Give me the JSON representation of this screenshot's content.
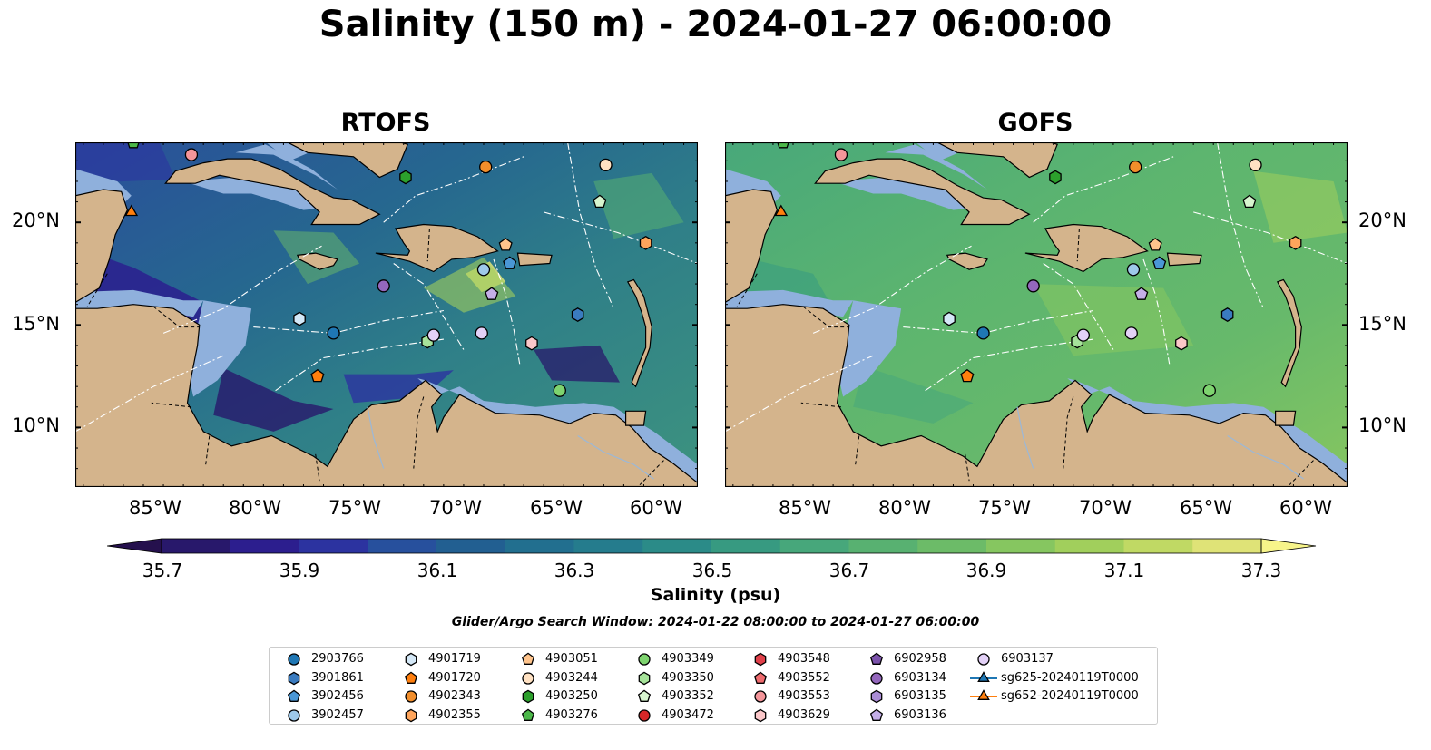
{
  "title": "Salinity (150 m) - 2024-01-27 06:00:00",
  "panels": [
    {
      "title": "RTOFS",
      "variant": "rtofs"
    },
    {
      "title": "GOFS",
      "variant": "gofs"
    }
  ],
  "axes": {
    "lon_ticks": [
      "85°W",
      "80°W",
      "75°W",
      "70°W",
      "65°W",
      "60°W"
    ],
    "lat_ticks": [
      "20°N",
      "15°N",
      "10°N"
    ]
  },
  "colorbar": {
    "label": "Salinity (psu)",
    "ticks": [
      "35.7",
      "35.9",
      "36.1",
      "36.3",
      "36.5",
      "36.7",
      "36.9",
      "37.1",
      "37.3"
    ],
    "colors": [
      "#28186b",
      "#2c1e8e",
      "#2c33a0",
      "#27509d",
      "#225f91",
      "#226f8f",
      "#257c8d",
      "#2b8b88",
      "#379a81",
      "#47a77b",
      "#58b171",
      "#6cbb68",
      "#86c660",
      "#a1cf5c",
      "#c0d964",
      "#dfe377"
    ]
  },
  "search_window": "Glider/Argo Search Window: 2024-01-22 08:00:00 to 2024-01-27 06:00:00",
  "legend": [
    {
      "label": "2903766",
      "marker": "circle",
      "color": "#1f77b4"
    },
    {
      "label": "3901861",
      "marker": "hexagon",
      "color": "#3a7bbf"
    },
    {
      "label": "3902456",
      "marker": "pentagon",
      "color": "#4a97d6"
    },
    {
      "label": "3902457",
      "marker": "circle",
      "color": "#9ec9ea"
    },
    {
      "label": "4901719",
      "marker": "hexagon",
      "color": "#d4e8f7"
    },
    {
      "label": "4901720",
      "marker": "pentagon",
      "color": "#ff7f0e"
    },
    {
      "label": "4902343",
      "marker": "circle",
      "color": "#f28e2b"
    },
    {
      "label": "4902355",
      "marker": "hexagon",
      "color": "#ffa55c"
    },
    {
      "label": "4903051",
      "marker": "pentagon",
      "color": "#ffc48c"
    },
    {
      "label": "4903244",
      "marker": "circle",
      "color": "#ffe1c2"
    },
    {
      "label": "4903250",
      "marker": "hexagon",
      "color": "#2ca02c"
    },
    {
      "label": "4903276",
      "marker": "pentagon",
      "color": "#4cb84a"
    },
    {
      "label": "4903349",
      "marker": "circle",
      "color": "#7ed46f"
    },
    {
      "label": "4903350",
      "marker": "hexagon",
      "color": "#a6e39a"
    },
    {
      "label": "4903352",
      "marker": "pentagon",
      "color": "#d7f5cf"
    },
    {
      "label": "4903472",
      "marker": "circle",
      "color": "#d62728"
    },
    {
      "label": "4903548",
      "marker": "hexagon",
      "color": "#e0404a"
    },
    {
      "label": "4903552",
      "marker": "pentagon",
      "color": "#ee6b6e"
    },
    {
      "label": "4903553",
      "marker": "circle",
      "color": "#f4959a"
    },
    {
      "label": "4903629",
      "marker": "hexagon",
      "color": "#fbc7c9"
    },
    {
      "label": "6902958",
      "marker": "pentagon",
      "color": "#7b52ab"
    },
    {
      "label": "6903134",
      "marker": "circle",
      "color": "#9467bd"
    },
    {
      "label": "6903135",
      "marker": "hexagon",
      "color": "#ab8dd6"
    },
    {
      "label": "6903136",
      "marker": "pentagon",
      "color": "#c5afe8"
    },
    {
      "label": "6903137",
      "marker": "circle",
      "color": "#e3d1f7"
    },
    {
      "label": "sg625-20240119T0000",
      "marker": "triangle",
      "color": "#1f77b4"
    },
    {
      "label": "sg652-20240119T0000",
      "marker": "triangle",
      "color": "#ff7f0e"
    }
  ],
  "platforms": [
    {
      "label": "2903766",
      "lon": -76.5,
      "lat": 14.6
    },
    {
      "label": "3901861",
      "lon": -64.3,
      "lat": 15.5
    },
    {
      "label": "3902456",
      "lon": -67.7,
      "lat": 18.0
    },
    {
      "label": "3902457",
      "lon": -69.0,
      "lat": 17.7
    },
    {
      "label": "4901719",
      "lon": -78.2,
      "lat": 15.3
    },
    {
      "label": "4901720",
      "lon": -77.3,
      "lat": 12.5
    },
    {
      "label": "4902343",
      "lon": -68.9,
      "lat": 22.7
    },
    {
      "label": "4902355",
      "lon": -60.9,
      "lat": 19.0
    },
    {
      "label": "4903051",
      "lon": -67.9,
      "lat": 18.9
    },
    {
      "label": "4903244",
      "lon": -62.9,
      "lat": 22.8
    },
    {
      "label": "4903250",
      "lon": -72.9,
      "lat": 22.2
    },
    {
      "label": "4903276",
      "lon": -86.5,
      "lat": 23.9
    },
    {
      "label": "4903349",
      "lon": -65.2,
      "lat": 11.8
    },
    {
      "label": "4903350",
      "lon": -71.8,
      "lat": 14.2
    },
    {
      "label": "4903352",
      "lon": -63.2,
      "lat": 21.0
    },
    {
      "label": "4903553",
      "lon": -83.6,
      "lat": 23.3
    },
    {
      "label": "4903629",
      "lon": -66.6,
      "lat": 14.1
    },
    {
      "label": "6903134",
      "lon": -74.0,
      "lat": 16.9
    },
    {
      "label": "6903136",
      "lon": -68.6,
      "lat": 16.5
    },
    {
      "label": "6903137",
      "lon": -69.1,
      "lat": 14.6
    },
    {
      "label": "6903137",
      "lon": -71.5,
      "lat": 14.5
    },
    {
      "label": "sg652-20240119T0000",
      "lon": -86.6,
      "lat": 20.5
    }
  ]
}
